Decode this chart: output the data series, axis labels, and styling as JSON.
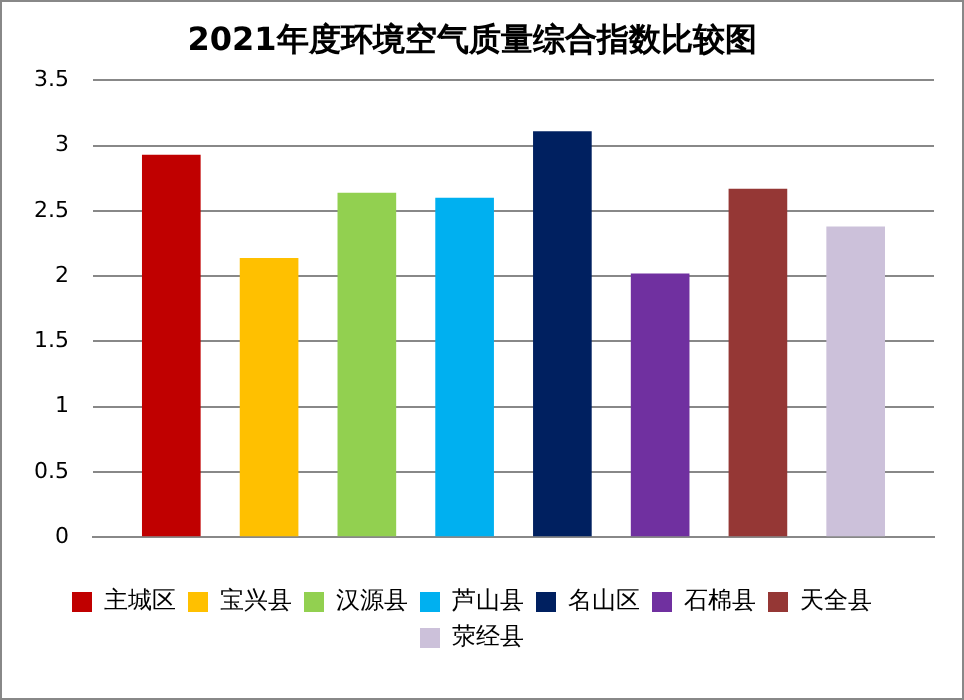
{
  "chart_data": {
    "type": "bar",
    "title": "2021年度环境空气质量综合指数比较图",
    "categories": [
      null
    ],
    "series": [
      {
        "name": "主城区",
        "color": "#c00000",
        "values": [
          2.93
        ]
      },
      {
        "name": "宝兴县",
        "color": "#ffc000",
        "values": [
          2.14
        ]
      },
      {
        "name": "汉源县",
        "color": "#92d050",
        "values": [
          2.64
        ]
      },
      {
        "name": "芦山县",
        "color": "#00b0f0",
        "values": [
          2.6
        ]
      },
      {
        "name": "名山区",
        "color": "#002060",
        "values": [
          3.11
        ]
      },
      {
        "name": "石棉县",
        "color": "#7030a0",
        "values": [
          2.02
        ]
      },
      {
        "name": "天全县",
        "color": "#953735",
        "values": [
          2.67
        ]
      },
      {
        "name": "荥经县",
        "color": "#ccc1da",
        "values": [
          2.38
        ]
      }
    ],
    "ylim": [
      0,
      3.5
    ],
    "yticks": [
      0,
      0.5,
      1,
      1.5,
      2,
      2.5,
      3,
      3.5
    ],
    "grid": "y",
    "legend": "bottom"
  }
}
